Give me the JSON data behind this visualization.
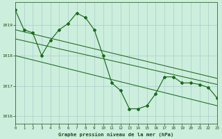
{
  "title": "Graphe pression niveau de la mer (hPa)",
  "bg_color": "#cceedd",
  "grid_color": "#aacccc",
  "line_color": "#1a6b1a",
  "xlim": [
    0,
    23
  ],
  "ylim": [
    1015.75,
    1019.75
  ],
  "yticks": [
    1016,
    1017,
    1018,
    1019
  ],
  "xticks": [
    0,
    1,
    2,
    3,
    4,
    5,
    6,
    7,
    8,
    9,
    10,
    11,
    12,
    13,
    14,
    15,
    16,
    17,
    18,
    19,
    20,
    21,
    22,
    23
  ],
  "series_main": {
    "x": [
      0,
      1,
      2,
      3,
      4,
      5,
      6,
      7,
      8,
      9,
      10,
      11,
      12,
      13,
      14,
      15,
      16,
      17,
      18,
      19,
      20,
      21,
      22,
      23
    ],
    "y": [
      1019.5,
      1018.85,
      1018.75,
      1018.0,
      1018.5,
      1018.85,
      1019.05,
      1019.4,
      1019.25,
      1018.85,
      1018.0,
      1017.1,
      1016.85,
      1016.25,
      1016.25,
      1016.35,
      1016.75,
      1017.3,
      1017.3,
      1017.1,
      1017.1,
      1017.05,
      1016.95,
      1016.6
    ]
  },
  "line1": {
    "x": [
      0,
      23
    ],
    "y": [
      1018.85,
      1017.25
    ]
  },
  "line2": {
    "x": [
      0,
      23
    ],
    "y": [
      1018.55,
      1017.05
    ]
  },
  "line3": {
    "x": [
      0,
      23
    ],
    "y": [
      1018.0,
      1016.35
    ]
  }
}
